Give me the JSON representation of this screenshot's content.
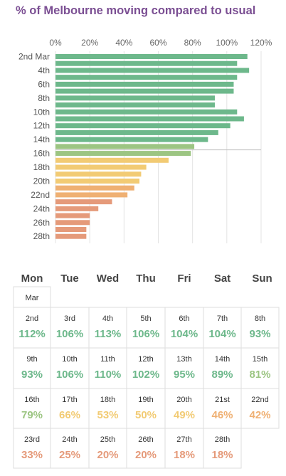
{
  "title": "% of Melbourne moving compared to usual",
  "colors": {
    "title": "#7b4f93",
    "green_dark": "#6db88b",
    "green_light": "#9cc582",
    "yellow": "#f2cb74",
    "orange": "#efb073",
    "salmon": "#e59a7a"
  },
  "chart_data": {
    "type": "bar",
    "orientation": "horizontal",
    "title": "% of Melbourne moving compared to usual",
    "x_axis": {
      "ticks": [
        "0%",
        "20%",
        "40%",
        "60%",
        "80%",
        "100%",
        "120%"
      ],
      "range": [
        0,
        120
      ],
      "position": "top"
    },
    "y_tick_labels": [
      "2nd Mar",
      "4th",
      "6th",
      "8th",
      "10th",
      "12th",
      "14th",
      "16th",
      "18th",
      "20th",
      "22nd",
      "24th",
      "26th",
      "28th"
    ],
    "categories": [
      "2nd",
      "3rd",
      "4th",
      "5th",
      "6th",
      "7th",
      "8th",
      "9th",
      "10th",
      "11th",
      "12th",
      "13th",
      "14th",
      "15th",
      "16th",
      "17th",
      "18th",
      "19th",
      "20th",
      "21st",
      "22nd",
      "23rd",
      "24th",
      "25th",
      "26th",
      "27th",
      "28th"
    ],
    "values": [
      112,
      106,
      113,
      106,
      104,
      104,
      93,
      93,
      106,
      110,
      102,
      95,
      89,
      81,
      79,
      66,
      53,
      50,
      49,
      46,
      42,
      33,
      25,
      20,
      20,
      18,
      18
    ],
    "reference_line": 100,
    "grid": true
  },
  "calendar": {
    "days": [
      "Mon",
      "Tue",
      "Wed",
      "Thu",
      "Fri",
      "Sat",
      "Sun"
    ],
    "month_label": "Mar",
    "weeks": [
      [
        {
          "date": "2nd",
          "value": "112%"
        },
        {
          "date": "3rd",
          "value": "106%"
        },
        {
          "date": "4th",
          "value": "113%"
        },
        {
          "date": "5th",
          "value": "106%"
        },
        {
          "date": "6th",
          "value": "104%"
        },
        {
          "date": "7th",
          "value": "104%"
        },
        {
          "date": "8th",
          "value": "93%"
        }
      ],
      [
        {
          "date": "9th",
          "value": "93%"
        },
        {
          "date": "10th",
          "value": "106%"
        },
        {
          "date": "11th",
          "value": "110%"
        },
        {
          "date": "12th",
          "value": "102%"
        },
        {
          "date": "13th",
          "value": "95%"
        },
        {
          "date": "14th",
          "value": "89%"
        },
        {
          "date": "15th",
          "value": "81%"
        }
      ],
      [
        {
          "date": "16th",
          "value": "79%"
        },
        {
          "date": "17th",
          "value": "66%"
        },
        {
          "date": "18th",
          "value": "53%"
        },
        {
          "date": "19th",
          "value": "50%"
        },
        {
          "date": "20th",
          "value": "49%"
        },
        {
          "date": "21st",
          "value": "46%"
        },
        {
          "date": "22nd",
          "value": "42%"
        }
      ],
      [
        {
          "date": "23rd",
          "value": "33%"
        },
        {
          "date": "24th",
          "value": "25%"
        },
        {
          "date": "25th",
          "value": "20%"
        },
        {
          "date": "26th",
          "value": "20%"
        },
        {
          "date": "27th",
          "value": "18%"
        },
        {
          "date": "28th",
          "value": "18%"
        }
      ]
    ]
  }
}
